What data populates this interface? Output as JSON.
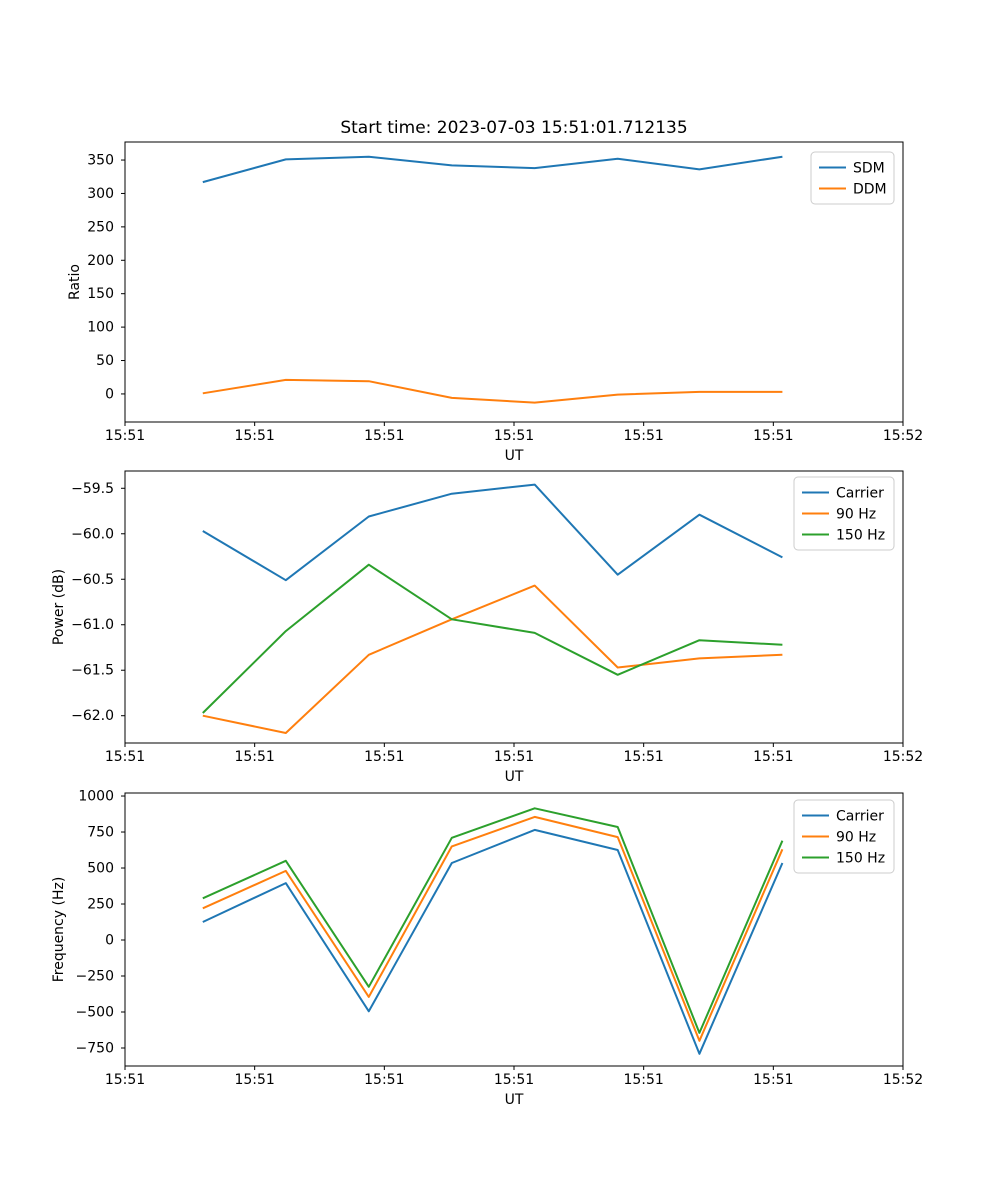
{
  "figure": {
    "title": "Start time: 2023-07-03 15:51:01.712135",
    "xlabel": "UT",
    "colors": {
      "blue": "#1f77b4",
      "orange": "#ff7f0e",
      "green": "#2ca02c",
      "axis": "#000000",
      "legend_edge": "#cccccc"
    }
  },
  "chart_data": [
    {
      "type": "line",
      "ylabel": "Ratio",
      "xlabel": "UT",
      "x_tick_labels": [
        "15:51",
        "15:51",
        "15:51",
        "15:51",
        "15:51",
        "15:51",
        "15:52"
      ],
      "x_tick_seconds": [
        0,
        10,
        20,
        30,
        40,
        50,
        60
      ],
      "xlim_seconds": [
        0,
        60
      ],
      "y_tick_values": [
        0,
        50,
        100,
        150,
        200,
        250,
        300,
        350
      ],
      "y_tick_labels": [
        "0",
        "50",
        "100",
        "150",
        "200",
        "250",
        "300",
        "350"
      ],
      "ylim": [
        -42,
        377
      ],
      "legend_position": "upper right",
      "grid": false,
      "x_seconds": [
        6.0,
        12.4,
        18.8,
        25.2,
        31.6,
        38.0,
        44.3,
        50.7
      ],
      "series": [
        {
          "name": "SDM",
          "color": "#1f77b4",
          "values": [
            317,
            351,
            355,
            342,
            338,
            352,
            336,
            355
          ]
        },
        {
          "name": "DDM",
          "color": "#ff7f0e",
          "values": [
            1,
            21,
            19,
            -6,
            -13,
            -1,
            3,
            3
          ]
        }
      ]
    },
    {
      "type": "line",
      "ylabel": "Power (dB)",
      "xlabel": "UT",
      "x_tick_labels": [
        "15:51",
        "15:51",
        "15:51",
        "15:51",
        "15:51",
        "15:51",
        "15:52"
      ],
      "x_tick_seconds": [
        0,
        10,
        20,
        30,
        40,
        50,
        60
      ],
      "xlim_seconds": [
        0,
        60
      ],
      "y_tick_values": [
        -59.5,
        -60.0,
        -60.5,
        -61.0,
        -61.5,
        -62.0
      ],
      "y_tick_labels": [
        "−59.5",
        "−60.0",
        "−60.5",
        "−61.0",
        "−61.5",
        "−62.0"
      ],
      "ylim": [
        -62.3,
        -59.31
      ],
      "legend_position": "upper right",
      "grid": false,
      "x_seconds": [
        6.0,
        12.4,
        18.8,
        25.2,
        31.6,
        38.0,
        44.3,
        50.7
      ],
      "series": [
        {
          "name": "Carrier",
          "color": "#1f77b4",
          "values": [
            -59.97,
            -60.51,
            -59.81,
            -59.56,
            -59.46,
            -60.45,
            -59.79,
            -60.26
          ]
        },
        {
          "name": "90 Hz",
          "color": "#ff7f0e",
          "values": [
            -62.0,
            -62.19,
            -61.33,
            -60.94,
            -60.57,
            -61.47,
            -61.37,
            -61.33
          ]
        },
        {
          "name": "150 Hz",
          "color": "#2ca02c",
          "values": [
            -61.97,
            -61.07,
            -60.34,
            -60.94,
            -61.09,
            -61.55,
            -61.17,
            -61.22
          ]
        }
      ]
    },
    {
      "type": "line",
      "ylabel": "Frequency (Hz)",
      "xlabel": "UT",
      "x_tick_labels": [
        "15:51",
        "15:51",
        "15:51",
        "15:51",
        "15:51",
        "15:51",
        "15:52"
      ],
      "x_tick_seconds": [
        0,
        10,
        20,
        30,
        40,
        50,
        60
      ],
      "xlim_seconds": [
        0,
        60
      ],
      "y_tick_values": [
        1000,
        750,
        500,
        250,
        0,
        -250,
        -500,
        -750
      ],
      "y_tick_labels": [
        "1000",
        "750",
        "500",
        "250",
        "0",
        "−250",
        "−500",
        "−750"
      ],
      "ylim": [
        -875,
        1021
      ],
      "legend_position": "upper right",
      "grid": false,
      "x_seconds": [
        6.0,
        12.4,
        18.8,
        25.2,
        31.6,
        38.0,
        44.3,
        50.7
      ],
      "series": [
        {
          "name": "Carrier",
          "color": "#1f77b4",
          "values": [
            125,
            395,
            -495,
            535,
            765,
            625,
            -790,
            535
          ]
        },
        {
          "name": "90 Hz",
          "color": "#ff7f0e",
          "values": [
            220,
            480,
            -395,
            650,
            855,
            715,
            -700,
            630
          ]
        },
        {
          "name": "150 Hz",
          "color": "#2ca02c",
          "values": [
            290,
            550,
            -325,
            710,
            915,
            785,
            -645,
            690
          ]
        }
      ]
    }
  ]
}
